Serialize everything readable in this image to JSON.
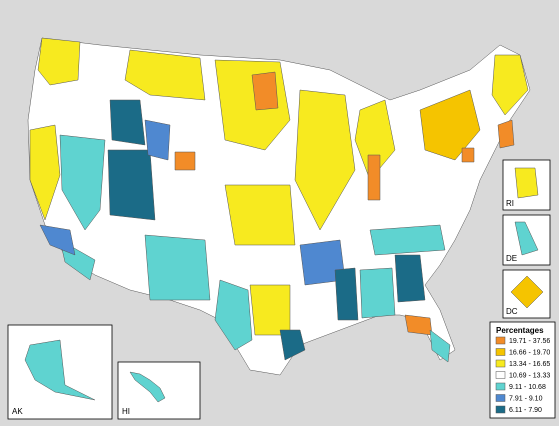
{
  "legend": {
    "title": "Percentages",
    "items": [
      {
        "label": "19.71 - 37.56",
        "color": "#f28c28"
      },
      {
        "label": "16.66 - 19.70",
        "color": "#f5c400"
      },
      {
        "label": "13.34 - 16.65",
        "color": "#f7ea1f"
      },
      {
        "label": "10.69 - 13.33",
        "color": "#ffffff"
      },
      {
        "label": "9.11 - 10.68",
        "color": "#5fd3d0"
      },
      {
        "label": "7.91 - 9.10",
        "color": "#4f88d0"
      },
      {
        "label": "6.11 - 7.90",
        "color": "#1b6b87"
      }
    ]
  },
  "insets": {
    "ak": "AK",
    "hi": "HI",
    "ri": "RI",
    "de": "DE",
    "dc": "DC"
  }
}
